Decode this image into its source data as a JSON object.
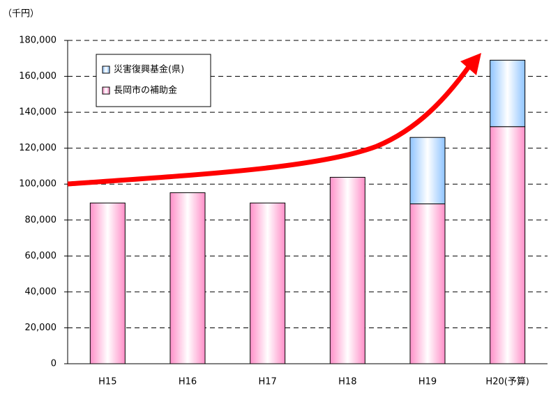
{
  "chart_data": {
    "type": "stacked_bar",
    "unit_label": "（千円）",
    "categories": [
      "H15",
      "H16",
      "H17",
      "H18",
      "H19",
      "H20(予算)"
    ],
    "series": [
      {
        "name": "長岡市の補助金",
        "color": "#ff8fc8",
        "values": [
          89500,
          95200,
          89500,
          103800,
          89000,
          132000
        ]
      },
      {
        "name": "災害復興基金(県)",
        "color": "#8fc4ff",
        "values": [
          null,
          null,
          null,
          null,
          37000,
          37000
        ]
      }
    ],
    "ylim": [
      0,
      180000
    ],
    "yticks": [
      0,
      {
        "value": 20000,
        "label": "20,000"
      },
      {
        "value": 40000,
        "label": "40,000"
      },
      {
        "value": 60000,
        "label": "60,000"
      },
      {
        "value": 80000,
        "label": "80,000"
      },
      {
        "value": 100000,
        "label": "100,000"
      },
      {
        "value": 120000,
        "label": "120,000"
      },
      {
        "value": 140000,
        "label": "140,000"
      },
      {
        "value": 160000,
        "label": "160,000"
      },
      {
        "value": {
          "value": 180000,
          "label": "180,000"
        },
        "label": "180,000"
      }
    ],
    "grid": true,
    "legend": "upper left"
  }
}
